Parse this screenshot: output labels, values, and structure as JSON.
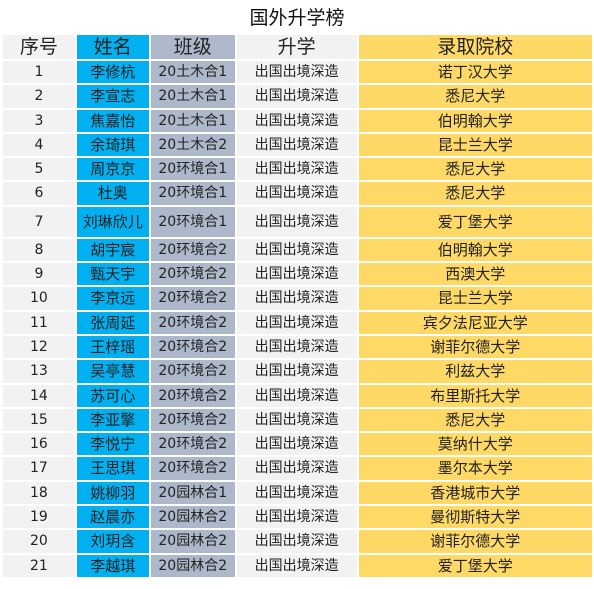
{
  "title": "国外升学榜",
  "headers": {
    "seq": "序号",
    "name": "姓名",
    "class": "班级",
    "path": "升学",
    "school": "录取院校"
  },
  "rows": [
    {
      "seq": "1",
      "name": "李修杭",
      "class": "20土木合1",
      "path": "出国出境深造",
      "school": "诺丁汉大学"
    },
    {
      "seq": "2",
      "name": "李宣志",
      "class": "20土木合1",
      "path": "出国出境深造",
      "school": "悉尼大学"
    },
    {
      "seq": "3",
      "name": "焦嘉怡",
      "class": "20土木合1",
      "path": "出国出境深造",
      "school": "伯明翰大学"
    },
    {
      "seq": "4",
      "name": "余琦琪",
      "class": "20土木合2",
      "path": "出国出境深造",
      "school": "昆士兰大学"
    },
    {
      "seq": "5",
      "name": "周京京",
      "class": "20环境合1",
      "path": "出国出境深造",
      "school": "悉尼大学"
    },
    {
      "seq": "6",
      "name": "杜奥",
      "class": "20环境合1",
      "path": "出国出境深造",
      "school": "悉尼大学"
    },
    {
      "seq": "7",
      "name": "刘琳欣儿",
      "class": "20环境合1",
      "path": "出国出境深造",
      "school": "爱丁堡大学"
    },
    {
      "seq": "8",
      "name": "胡宇宸",
      "class": "20环境合2",
      "path": "出国出境深造",
      "school": "伯明翰大学"
    },
    {
      "seq": "9",
      "name": "甄天宇",
      "class": "20环境合2",
      "path": "出国出境深造",
      "school": "西澳大学"
    },
    {
      "seq": "10",
      "name": "李京远",
      "class": "20环境合2",
      "path": "出国出境深造",
      "school": "昆士兰大学"
    },
    {
      "seq": "11",
      "name": "张周延",
      "class": "20环境合2",
      "path": "出国出境深造",
      "school": "宾夕法尼亚大学"
    },
    {
      "seq": "12",
      "name": "王梓瑶",
      "class": "20环境合2",
      "path": "出国出境深造",
      "school": "谢菲尔德大学"
    },
    {
      "seq": "13",
      "name": "吴亭慧",
      "class": "20环境合2",
      "path": "出国出境深造",
      "school": "利兹大学"
    },
    {
      "seq": "14",
      "name": "苏可心",
      "class": "20环境合2",
      "path": "出国出境深造",
      "school": "布里斯托大学"
    },
    {
      "seq": "15",
      "name": "李亚擎",
      "class": "20环境合2",
      "path": "出国出境深造",
      "school": "悉尼大学"
    },
    {
      "seq": "16",
      "name": "李悦宁",
      "class": "20环境合2",
      "path": "出国出境深造",
      "school": "莫纳什大学"
    },
    {
      "seq": "17",
      "name": "王思琪",
      "class": "20环境合2",
      "path": "出国出境深造",
      "school": "墨尔本大学"
    },
    {
      "seq": "18",
      "name": "姚柳羽",
      "class": "20园林合1",
      "path": "出国出境深造",
      "school": "香港城市大学"
    },
    {
      "seq": "19",
      "name": "赵晨亦",
      "class": "20园林合2",
      "path": "出国出境深造",
      "school": "曼彻斯特大学"
    },
    {
      "seq": "20",
      "name": "刘玥含",
      "class": "20园林合2",
      "path": "出国出境深造",
      "school": "谢菲尔德大学"
    },
    {
      "seq": "21",
      "name": "李越琪",
      "class": "20园林合2",
      "path": "出国出境深造",
      "school": "爱丁堡大学"
    }
  ],
  "colors": {
    "name_column": "#00b0f0",
    "class_column": "#adb9ca",
    "school_column": "#ffd966",
    "plain_column": "#f2f2f2"
  }
}
